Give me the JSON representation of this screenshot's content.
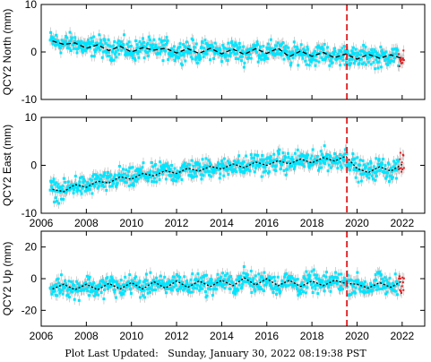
{
  "footer": {
    "label": "Plot Last Updated:",
    "value": "Sunday, January 30, 2022 08:19:38 PST"
  },
  "colors": {
    "error_bar": "#b3b3b3",
    "point": "#00e5ff",
    "recent_point": "#e41a1c",
    "model_line": "#000000",
    "event_line": "#e41a1c"
  },
  "chart_data": [
    {
      "type": "scatter",
      "ylabel": "QCY2 North (mm)",
      "xlim": [
        2006,
        2023
      ],
      "ylim": [
        -10,
        10
      ],
      "xticks": [
        "2006",
        "2008",
        "2010",
        "2012",
        "2014",
        "2016",
        "2018",
        "2020",
        "2022"
      ],
      "yticks": [
        "-10",
        "0",
        "10"
      ],
      "x_tick_labels_shown": false,
      "event_line_x": 2019.55,
      "data_start": 2006.4,
      "data_end": 2022.08,
      "series": [
        {
          "style": "dashed",
          "x": [
            2006.5,
            2007.0,
            2007.5,
            2008.0,
            2008.5,
            2009.0,
            2009.5,
            2010.0,
            2010.5,
            2011.0,
            2011.5,
            2012.0,
            2012.5,
            2013.0,
            2013.5,
            2014.0,
            2014.5,
            2015.0,
            2015.5,
            2016.0,
            2016.5,
            2017.0,
            2017.5,
            2018.0,
            2018.5,
            2019.0,
            2019.5,
            2020.0,
            2020.5,
            2021.0,
            2021.5,
            2022.0
          ],
          "values": [
            2.3,
            1.6,
            1.9,
            0.8,
            1.5,
            0.3,
            1.2,
            0.0,
            0.9,
            0.4,
            0.8,
            -0.2,
            0.7,
            -0.3,
            0.8,
            -0.4,
            0.6,
            -0.5,
            0.7,
            -0.3,
            0.8,
            -1.0,
            0.2,
            -0.9,
            -0.1,
            -1.2,
            -0.4,
            -1.5,
            -0.5,
            -1.3,
            -0.6,
            -1.4
          ]
        }
      ]
    },
    {
      "type": "scatter",
      "ylabel": "QCY2 East (mm)",
      "xlim": [
        2006,
        2023
      ],
      "ylim": [
        -10,
        10
      ],
      "xticks": [
        "2006",
        "2008",
        "2010",
        "2012",
        "2014",
        "2016",
        "2018",
        "2020",
        "2022"
      ],
      "yticks": [
        "-10",
        "0",
        "10"
      ],
      "x_tick_labels_shown": true,
      "event_line_x": 2019.55,
      "data_start": 2006.4,
      "data_end": 2022.08,
      "series": [
        {
          "style": "dotted",
          "x": [
            2006.5,
            2007.0,
            2007.5,
            2008.0,
            2008.5,
            2009.0,
            2009.5,
            2010.0,
            2010.5,
            2011.0,
            2011.5,
            2012.0,
            2012.5,
            2013.0,
            2013.5,
            2014.0,
            2014.5,
            2015.0,
            2015.5,
            2016.0,
            2016.5,
            2017.0,
            2017.5,
            2018.0,
            2018.5,
            2019.0,
            2019.5,
            2020.0,
            2020.5,
            2021.0,
            2021.5,
            2022.0
          ],
          "values": [
            -5.0,
            -5.5,
            -4.0,
            -4.6,
            -3.3,
            -3.7,
            -2.4,
            -2.9,
            -1.7,
            -2.2,
            -1.1,
            -1.7,
            -0.6,
            -1.2,
            -0.2,
            -0.8,
            0.3,
            -0.5,
            0.7,
            0.0,
            1.0,
            0.3,
            1.3,
            0.5,
            1.6,
            0.9,
            1.9,
            -0.7,
            -1.5,
            -0.3,
            -1.2,
            0.2
          ]
        }
      ]
    },
    {
      "type": "scatter",
      "ylabel": "QCY2 Up (mm)",
      "xlim": [
        2006,
        2023
      ],
      "ylim": [
        -30,
        30
      ],
      "xticks": [
        "2006",
        "2008",
        "2010",
        "2012",
        "2014",
        "2016",
        "2018",
        "2020",
        "2022"
      ],
      "yticks": [
        "-20",
        "0",
        "20"
      ],
      "x_tick_labels_shown": true,
      "event_line_x": 2019.55,
      "data_start": 2006.4,
      "data_end": 2022.08,
      "series": [
        {
          "style": "dotted",
          "x": [
            2006.5,
            2007.0,
            2007.5,
            2008.0,
            2008.5,
            2009.0,
            2009.5,
            2010.0,
            2010.5,
            2011.0,
            2011.5,
            2012.0,
            2012.5,
            2013.0,
            2013.5,
            2014.0,
            2014.5,
            2015.0,
            2015.5,
            2016.0,
            2016.5,
            2017.0,
            2017.5,
            2018.0,
            2018.5,
            2019.0,
            2019.5,
            2020.0,
            2020.5,
            2021.0,
            2021.5,
            2022.0
          ],
          "values": [
            -6.5,
            -3.5,
            -7.0,
            -3.5,
            -7.0,
            -3.0,
            -6.5,
            -2.5,
            -6.5,
            -2.0,
            -6.0,
            -1.5,
            -5.5,
            -1.5,
            -5.0,
            -1.0,
            -4.5,
            0.5,
            -4.0,
            0.0,
            -4.5,
            -1.0,
            -5.0,
            -1.5,
            -4.5,
            -1.0,
            -3.0,
            -3.5,
            -6.0,
            -2.5,
            -5.5,
            -1.5
          ]
        }
      ]
    }
  ]
}
